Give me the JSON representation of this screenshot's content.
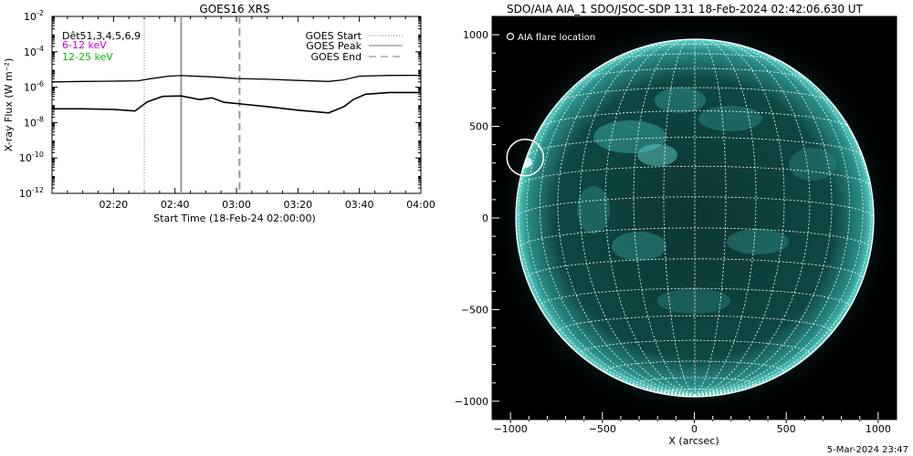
{
  "left_panel": {
    "title": "GOES16 XRS",
    "legend_left": [
      {
        "text": "Dêt51,3,4,5,6,9",
        "color": "#000000"
      },
      {
        "text": "6-12 keV",
        "color": "#d000d0"
      },
      {
        "text": "12-25 keV",
        "color": "#00c000"
      }
    ],
    "legend_right": [
      {
        "text": "GOES Start",
        "style": "dotted"
      },
      {
        "text": "GOES Peak",
        "style": "solid"
      },
      {
        "text": "GOES End",
        "style": "dashed"
      }
    ]
  },
  "right_panel": {
    "title": "SDO/AIA AIA_1 SDO/JSOC-SDP 131 18-Feb-2024 02:42:06.630 UT",
    "legend": "AIA flare location",
    "footer": "5-Mar-2024 23:47",
    "colors": {
      "background": "#000000",
      "sun_core": "#0a2e2e",
      "sun_bright": "#3fb8b0",
      "grid": "#ffffff"
    }
  },
  "chart_data": [
    {
      "type": "line",
      "title": "GOES16 XRS",
      "xlabel": "Start Time (18-Feb-24 02:00:00)",
      "ylabel": "X-ray Flux (W m⁻²)",
      "y_scale": "log",
      "xlim": [
        "02:00",
        "04:00"
      ],
      "ylim": [
        1e-12,
        0.01
      ],
      "x_ticks": [
        "02:20",
        "02:40",
        "03:00",
        "03:20",
        "03:40",
        "04:00"
      ],
      "y_ticks": [
        {
          "value": 0.01,
          "base": "10",
          "exp": "-2"
        },
        {
          "value": 0.0001,
          "base": "10",
          "exp": "-4"
        },
        {
          "value": 1e-06,
          "base": "10",
          "exp": "-6"
        },
        {
          "value": 1e-08,
          "base": "10",
          "exp": "-8"
        },
        {
          "value": 1e-10,
          "base": "10",
          "exp": "-10"
        },
        {
          "value": 1e-12,
          "base": "10",
          "exp": "-12"
        }
      ],
      "series": [
        {
          "x": [
            "02:00",
            "02:10",
            "02:20",
            "02:28",
            "02:32",
            "02:38",
            "02:42",
            "02:48",
            "02:55",
            "03:00",
            "03:10",
            "03:20",
            "03:30",
            "03:35",
            "03:40",
            "03:50",
            "04:00"
          ],
          "values": [
            2e-06,
            2.1e-06,
            2.2e-06,
            2.3e-06,
            3e-06,
            4.2e-06,
            4.5e-06,
            4.1e-06,
            3.6e-06,
            3.1e-06,
            2.8e-06,
            2.4e-06,
            2.1e-06,
            2.6e-06,
            4.2e-06,
            4.6e-06,
            4.7e-06
          ]
        },
        {
          "x": [
            "02:00",
            "02:10",
            "02:20",
            "02:27",
            "02:31",
            "02:36",
            "02:42",
            "02:48",
            "02:52",
            "02:56",
            "03:00",
            "03:10",
            "03:20",
            "03:30",
            "03:35",
            "03:38",
            "03:42",
            "03:50",
            "04:00"
          ],
          "values": [
            6e-08,
            6e-08,
            5.5e-08,
            4.5e-08,
            1.5e-07,
            3e-07,
            3.2e-07,
            2e-07,
            2.5e-07,
            1.4e-07,
            1.2e-07,
            8e-08,
            5e-08,
            3.5e-08,
            8e-08,
            2e-07,
            4e-07,
            5e-07,
            5e-07
          ]
        }
      ],
      "vlines": [
        {
          "x": "02:30",
          "style": "dotted"
        },
        {
          "x": "02:42",
          "style": "solid"
        },
        {
          "x": "03:01",
          "style": "dashed"
        }
      ]
    },
    {
      "type": "scatter",
      "xlabel": "X (arcsec)",
      "ylabel": "",
      "xlim": [
        -1100,
        1100
      ],
      "ylim": [
        -1100,
        1100
      ],
      "x_ticks": [
        -1000,
        -500,
        0,
        500,
        1000
      ],
      "x_tick_labels": [
        "−1000",
        "−500",
        "0",
        "500",
        "1000"
      ],
      "y_ticks": [
        -1000,
        -500,
        0,
        500,
        1000
      ],
      "y_tick_labels": [
        "−1000",
        "−500",
        "0",
        "500",
        "1000"
      ],
      "flare_location": {
        "x": -920,
        "y": 330
      }
    }
  ]
}
